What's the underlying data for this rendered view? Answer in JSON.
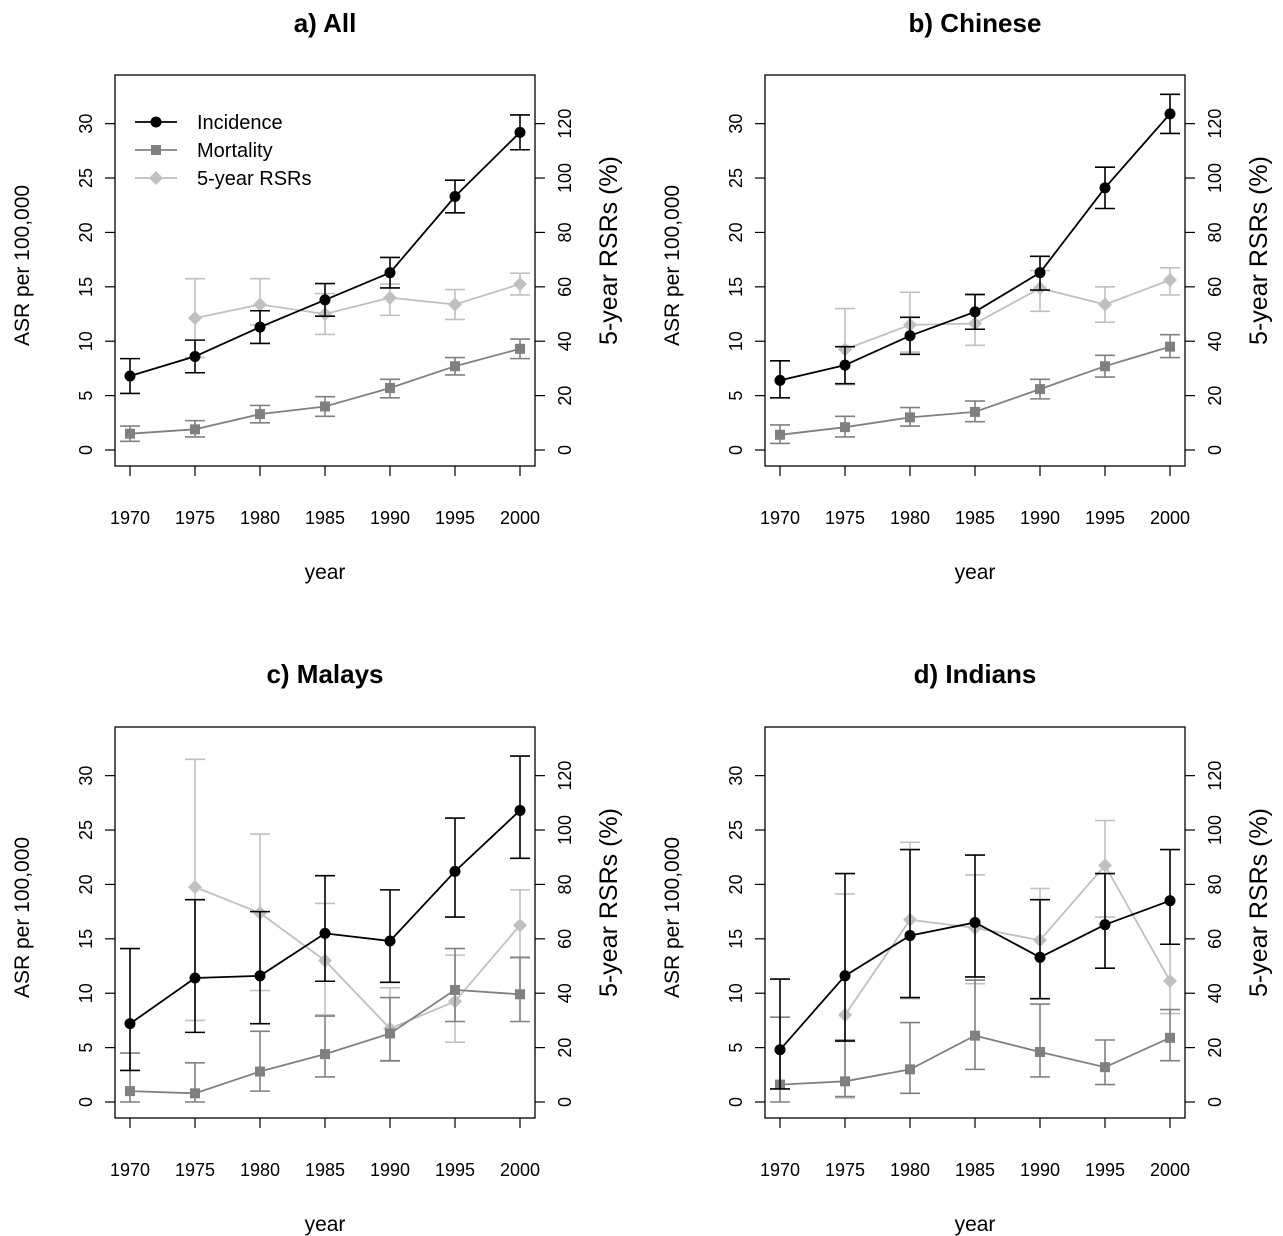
{
  "chart_data": [
    {
      "type": "line",
      "title": "a) All",
      "xlabel": "year",
      "ylabel": "ASR per 100,000",
      "y2label": "5-year RSRs (%)",
      "x": [
        1970,
        1975,
        1980,
        1985,
        1990,
        1995,
        2000
      ],
      "x_ticks": [
        "1970",
        "1975",
        "1980",
        "1985",
        "1990",
        "1995",
        "2000"
      ],
      "ylim": [
        0,
        33
      ],
      "y_ticks": [
        "0",
        "5",
        "10",
        "15",
        "20",
        "25",
        "30"
      ],
      "y2lim": [
        0,
        132
      ],
      "y2_ticks": [
        "0",
        "20",
        "40",
        "60",
        "80",
        "100",
        "120"
      ],
      "legend": {
        "placement": "top-left",
        "entries": [
          "Incidence",
          "Mortality",
          "5-year RSRs"
        ]
      },
      "series": [
        {
          "name": "Incidence",
          "axis": "left",
          "color": "#000000",
          "marker": "circle",
          "values": [
            6.8,
            8.6,
            11.3,
            13.8,
            16.3,
            23.3,
            29.2
          ],
          "lower": [
            5.2,
            7.1,
            9.8,
            12.3,
            14.9,
            21.8,
            27.6
          ],
          "upper": [
            8.4,
            10.1,
            12.8,
            15.3,
            17.7,
            24.8,
            30.8
          ]
        },
        {
          "name": "Mortality",
          "axis": "left",
          "color": "#808080",
          "marker": "square",
          "values": [
            1.5,
            1.9,
            3.3,
            4.0,
            5.7,
            7.7,
            9.3
          ],
          "lower": [
            0.8,
            1.2,
            2.5,
            3.1,
            4.8,
            6.9,
            8.4
          ],
          "upper": [
            2.2,
            2.7,
            4.1,
            4.9,
            6.5,
            8.5,
            10.2
          ]
        },
        {
          "name": "5-year RSRs",
          "axis": "right",
          "color": "#c0c0c0",
          "marker": "diamond",
          "values": [
            null,
            48.5,
            53.5,
            50.0,
            56.0,
            53.5,
            61.0
          ],
          "lower": [
            null,
            34.0,
            46.0,
            42.5,
            49.5,
            48.0,
            57.0
          ],
          "upper": [
            null,
            63.0,
            63.0,
            57.5,
            61.0,
            59.0,
            65.0
          ]
        }
      ]
    },
    {
      "type": "line",
      "title": "b) Chinese",
      "xlabel": "year",
      "ylabel": "ASR per 100,000",
      "y2label": "5-year RSRs (%)",
      "x": [
        1970,
        1975,
        1980,
        1985,
        1990,
        1995,
        2000
      ],
      "x_ticks": [
        "1970",
        "1975",
        "1980",
        "1985",
        "1990",
        "1995",
        "2000"
      ],
      "ylim": [
        0,
        33
      ],
      "y_ticks": [
        "0",
        "5",
        "10",
        "15",
        "20",
        "25",
        "30"
      ],
      "y2lim": [
        0,
        132
      ],
      "y2_ticks": [
        "0",
        "20",
        "40",
        "60",
        "80",
        "100",
        "120"
      ],
      "series": [
        {
          "name": "Incidence",
          "axis": "left",
          "color": "#000000",
          "marker": "circle",
          "values": [
            6.4,
            7.8,
            10.5,
            12.7,
            16.3,
            24.1,
            30.9
          ],
          "lower": [
            4.8,
            6.1,
            8.8,
            11.1,
            14.7,
            22.2,
            29.1
          ],
          "upper": [
            8.2,
            9.5,
            12.2,
            14.3,
            17.8,
            26.0,
            32.7
          ]
        },
        {
          "name": "Mortality",
          "axis": "left",
          "color": "#808080",
          "marker": "square",
          "values": [
            1.4,
            2.1,
            3.0,
            3.5,
            5.6,
            7.7,
            9.5
          ],
          "lower": [
            0.6,
            1.2,
            2.2,
            2.6,
            4.7,
            6.7,
            8.5
          ],
          "upper": [
            2.3,
            3.1,
            3.9,
            4.5,
            6.5,
            8.7,
            10.6
          ]
        },
        {
          "name": "5-year RSRs",
          "axis": "right",
          "color": "#c0c0c0",
          "marker": "diamond",
          "values": [
            null,
            37.0,
            46.0,
            46.5,
            59.5,
            53.5,
            62.5
          ],
          "lower": [
            null,
            24.0,
            36.0,
            38.5,
            51.0,
            47.0,
            57.0
          ],
          "upper": [
            null,
            52.0,
            58.0,
            57.0,
            66.0,
            60.0,
            67.0
          ]
        }
      ]
    },
    {
      "type": "line",
      "title": "c) Malays",
      "xlabel": "year",
      "ylabel": "ASR per 100,000",
      "y2label": "5-year RSRs (%)",
      "x": [
        1970,
        1975,
        1980,
        1985,
        1990,
        1995,
        2000
      ],
      "x_ticks": [
        "1970",
        "1975",
        "1980",
        "1985",
        "1990",
        "1995",
        "2000"
      ],
      "ylim": [
        0,
        33
      ],
      "y_ticks": [
        "0",
        "5",
        "10",
        "15",
        "20",
        "25",
        "30"
      ],
      "y2lim": [
        0,
        132
      ],
      "y2_ticks": [
        "0",
        "20",
        "40",
        "60",
        "80",
        "100",
        "120"
      ],
      "series": [
        {
          "name": "Incidence",
          "axis": "left",
          "color": "#000000",
          "marker": "circle",
          "values": [
            7.2,
            11.4,
            11.6,
            15.5,
            14.8,
            21.2,
            26.8
          ],
          "lower": [
            2.9,
            6.4,
            7.2,
            11.1,
            11.0,
            17.0,
            22.4
          ],
          "upper": [
            14.1,
            18.6,
            17.5,
            20.8,
            19.5,
            26.1,
            31.8
          ]
        },
        {
          "name": "Mortality",
          "axis": "left",
          "color": "#808080",
          "marker": "square",
          "values": [
            1.0,
            0.8,
            2.8,
            4.4,
            6.3,
            10.3,
            9.9
          ],
          "lower": [
            0.0,
            0.0,
            1.0,
            2.3,
            3.8,
            7.4,
            7.4
          ],
          "upper": [
            4.5,
            3.6,
            6.5,
            7.9,
            9.6,
            14.1,
            13.3
          ]
        },
        {
          "name": "5-year RSRs",
          "axis": "right",
          "color": "#c0c0c0",
          "marker": "diamond",
          "values": [
            null,
            79.0,
            69.5,
            52.0,
            27.0,
            37.0,
            65.0
          ],
          "lower": [
            null,
            30.0,
            41.0,
            32.0,
            15.0,
            22.0,
            53.0
          ],
          "upper": [
            null,
            126.0,
            98.5,
            73.0,
            42.0,
            54.0,
            78.0
          ]
        }
      ]
    },
    {
      "type": "line",
      "title": "d) Indians",
      "xlabel": "year",
      "ylabel": "ASR per 100,000",
      "y2label": "5-year RSRs (%)",
      "x": [
        1970,
        1975,
        1980,
        1985,
        1990,
        1995,
        2000
      ],
      "x_ticks": [
        "1970",
        "1975",
        "1980",
        "1985",
        "1990",
        "1995",
        "2000"
      ],
      "ylim": [
        0,
        33
      ],
      "y_ticks": [
        "0",
        "5",
        "10",
        "15",
        "20",
        "25",
        "30"
      ],
      "y2lim": [
        0,
        132
      ],
      "y2_ticks": [
        "0",
        "20",
        "40",
        "60",
        "80",
        "100",
        "120"
      ],
      "series": [
        {
          "name": "Incidence",
          "axis": "left",
          "color": "#000000",
          "marker": "circle",
          "values": [
            4.8,
            11.6,
            15.3,
            16.5,
            13.3,
            16.3,
            18.5
          ],
          "lower": [
            1.2,
            5.6,
            9.6,
            11.5,
            9.5,
            12.3,
            14.5
          ],
          "upper": [
            11.3,
            21.0,
            23.2,
            22.7,
            18.6,
            21.0,
            23.2
          ]
        },
        {
          "name": "Mortality",
          "axis": "left",
          "color": "#808080",
          "marker": "square",
          "values": [
            1.6,
            1.9,
            3.0,
            6.1,
            4.6,
            3.2,
            5.9
          ],
          "lower": [
            0.0,
            0.5,
            0.8,
            3.0,
            2.3,
            1.6,
            3.8
          ],
          "upper": [
            7.8,
            5.7,
            7.3,
            11.2,
            9.0,
            5.7,
            8.5
          ]
        },
        {
          "name": "5-year RSRs",
          "axis": "right",
          "color": "#c0c0c0",
          "marker": "diamond",
          "values": [
            null,
            32.0,
            67.0,
            64.0,
            59.5,
            87.0,
            44.5
          ],
          "lower": [
            null,
            1.5,
            38.0,
            43.5,
            38.0,
            68.0,
            32.5
          ],
          "upper": [
            null,
            76.5,
            95.5,
            83.5,
            78.5,
            103.5,
            58.0
          ]
        }
      ]
    }
  ]
}
